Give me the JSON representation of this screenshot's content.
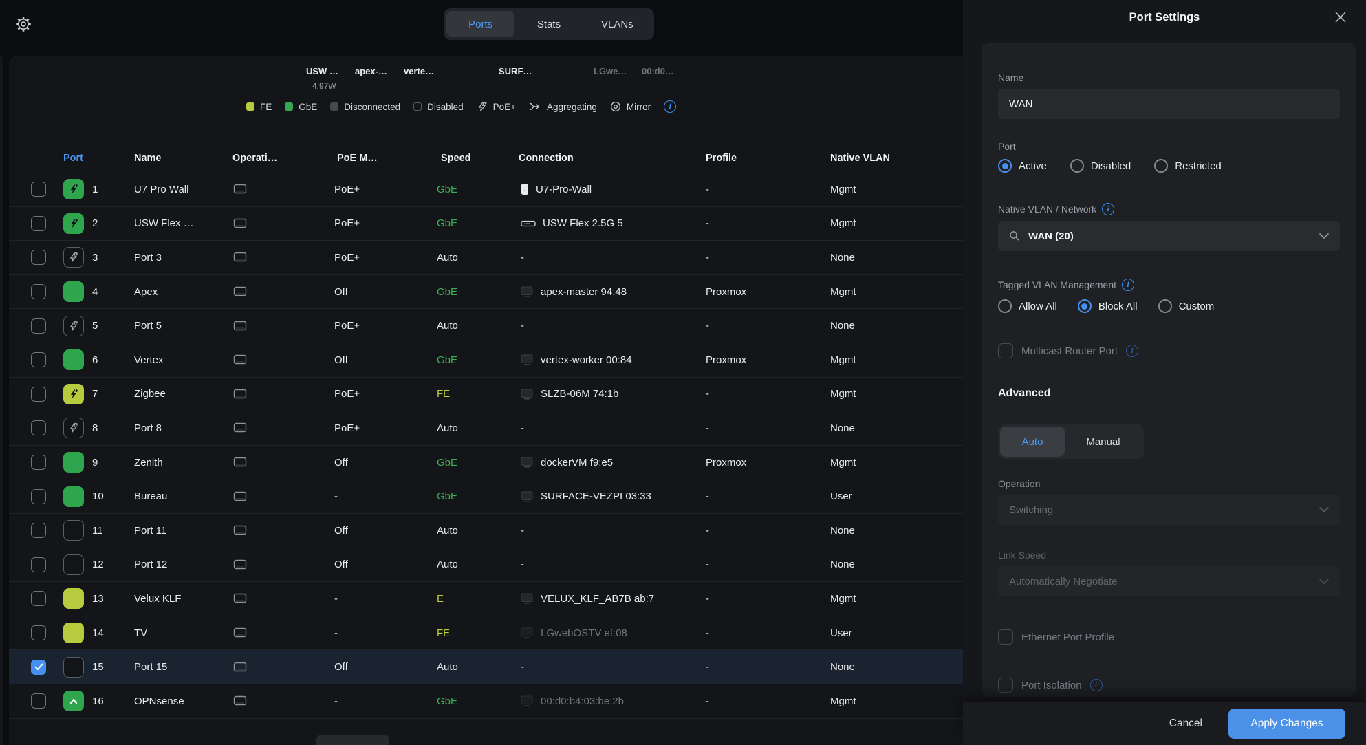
{
  "header": {
    "tabs": [
      {
        "label": "Ports",
        "active": true
      },
      {
        "label": "Stats",
        "active": false
      },
      {
        "label": "VLANs",
        "active": false
      }
    ]
  },
  "ports_overview": {
    "device_labels": [
      {
        "text": "USW …",
        "dim": false
      },
      {
        "text": "apex-…",
        "dim": false
      },
      {
        "text": "verte…",
        "dim": false
      },
      {
        "text": "SURF…",
        "dim": false
      },
      {
        "text": "LGwe…",
        "dim": true
      },
      {
        "text": "00:d0…",
        "dim": true
      }
    ],
    "power": "4.97W"
  },
  "legend": {
    "items": [
      {
        "icon": "fe-swatch",
        "label": "FE"
      },
      {
        "icon": "gbe-swatch",
        "label": "GbE"
      },
      {
        "icon": "disconnected-swatch",
        "label": "Disconnected"
      },
      {
        "icon": "disabled-swatch",
        "label": "Disabled"
      },
      {
        "icon": "poe-bolt-icon",
        "label": "PoE+"
      },
      {
        "icon": "aggregating-icon",
        "label": "Aggregating"
      },
      {
        "icon": "mirror-icon",
        "label": "Mirror"
      }
    ]
  },
  "table": {
    "columns": [
      "Port",
      "Name",
      "Operati…",
      "PoE M…",
      "Speed",
      "Connection",
      "Profile",
      "Native VLAN"
    ],
    "rows": [
      {
        "num": "1",
        "icon": "poe-active",
        "name": "U7 Pro Wall",
        "poe": "PoE+",
        "speed": "GbE",
        "speed_class": "gbe",
        "conn_icon": "ap",
        "conn": "U7-Pro-Wall",
        "conn_dim": false,
        "profile": "-",
        "vlan": "Mgmt",
        "selected": false
      },
      {
        "num": "2",
        "icon": "poe-active",
        "name": "USW Flex …",
        "poe": "PoE+",
        "speed": "GbE",
        "speed_class": "gbe",
        "conn_icon": "switch",
        "conn": "USW Flex 2.5G 5",
        "conn_dim": false,
        "profile": "-",
        "vlan": "Mgmt",
        "selected": false
      },
      {
        "num": "3",
        "icon": "poe-off",
        "name": "Port 3",
        "poe": "PoE+",
        "speed": "Auto",
        "speed_class": "plain",
        "conn_icon": null,
        "conn": "-",
        "conn_dim": false,
        "profile": "-",
        "vlan": "None",
        "selected": false
      },
      {
        "num": "4",
        "icon": "green",
        "name": "Apex",
        "poe": "Off",
        "speed": "GbE",
        "speed_class": "gbe",
        "conn_icon": "client",
        "conn": "apex-master 94:48",
        "conn_dim": false,
        "profile": "Proxmox",
        "vlan": "Mgmt",
        "selected": false
      },
      {
        "num": "5",
        "icon": "poe-off",
        "name": "Port 5",
        "poe": "PoE+",
        "speed": "Auto",
        "speed_class": "plain",
        "conn_icon": null,
        "conn": "-",
        "conn_dim": false,
        "profile": "-",
        "vlan": "None",
        "selected": false
      },
      {
        "num": "6",
        "icon": "green",
        "name": "Vertex",
        "poe": "Off",
        "speed": "GbE",
        "speed_class": "gbe",
        "conn_icon": "client",
        "conn": "vertex-worker 00:84",
        "conn_dim": false,
        "profile": "Proxmox",
        "vlan": "Mgmt",
        "selected": false
      },
      {
        "num": "7",
        "icon": "poe-fe",
        "name": "Zigbee",
        "poe": "PoE+",
        "speed": "FE",
        "speed_class": "fe",
        "conn_icon": "client",
        "conn": "SLZB-06M 74:1b",
        "conn_dim": false,
        "profile": "-",
        "vlan": "Mgmt",
        "selected": false
      },
      {
        "num": "8",
        "icon": "poe-off",
        "name": "Port 8",
        "poe": "PoE+",
        "speed": "Auto",
        "speed_class": "plain",
        "conn_icon": null,
        "conn": "-",
        "conn_dim": false,
        "profile": "-",
        "vlan": "None",
        "selected": false
      },
      {
        "num": "9",
        "icon": "green",
        "name": "Zenith",
        "poe": "Off",
        "speed": "GbE",
        "speed_class": "gbe",
        "conn_icon": "client",
        "conn": "dockerVM f9:e5",
        "conn_dim": false,
        "profile": "Proxmox",
        "vlan": "Mgmt",
        "selected": false
      },
      {
        "num": "10",
        "icon": "green",
        "name": "Bureau",
        "poe": "-",
        "speed": "GbE",
        "speed_class": "gbe",
        "conn_icon": "client",
        "conn": "SURFACE-VEZPI 03:33",
        "conn_dim": false,
        "profile": "-",
        "vlan": "User",
        "selected": false
      },
      {
        "num": "11",
        "icon": "empty",
        "name": "Port 11",
        "poe": "Off",
        "speed": "Auto",
        "speed_class": "plain",
        "conn_icon": null,
        "conn": "-",
        "conn_dim": false,
        "profile": "-",
        "vlan": "None",
        "selected": false
      },
      {
        "num": "12",
        "icon": "empty",
        "name": "Port 12",
        "poe": "Off",
        "speed": "Auto",
        "speed_class": "plain",
        "conn_icon": null,
        "conn": "-",
        "conn_dim": false,
        "profile": "-",
        "vlan": "None",
        "selected": false
      },
      {
        "num": "13",
        "icon": "fe",
        "name": "Velux KLF",
        "poe": "-",
        "speed": "E",
        "speed_class": "fe",
        "conn_icon": "client",
        "conn": "VELUX_KLF_AB7B ab:7",
        "conn_dim": false,
        "profile": "-",
        "vlan": "Mgmt",
        "selected": false
      },
      {
        "num": "14",
        "icon": "fe",
        "name": "TV",
        "poe": "-",
        "speed": "FE",
        "speed_class": "fe",
        "conn_icon": "client",
        "conn": "LGwebOSTV ef:08",
        "conn_dim": true,
        "profile": "-",
        "vlan": "User",
        "selected": false
      },
      {
        "num": "15",
        "icon": "empty",
        "name": "Port 15",
        "poe": "Off",
        "speed": "Auto",
        "speed_class": "plain",
        "conn_icon": null,
        "conn": "-",
        "conn_dim": false,
        "profile": "-",
        "vlan": "None",
        "selected": true
      },
      {
        "num": "16",
        "icon": "uplink",
        "name": "OPNsense",
        "poe": "-",
        "speed": "GbE",
        "speed_class": "gbe",
        "conn_icon": "client",
        "conn": "00:d0:b4:03:be:2b",
        "conn_dim": true,
        "profile": "-",
        "vlan": "Mgmt",
        "selected": false
      }
    ]
  },
  "panel": {
    "title": "Port Settings",
    "name_label": "Name",
    "name_value": "WAN",
    "port_label": "Port",
    "port_options": [
      {
        "label": "Active",
        "selected": true
      },
      {
        "label": "Disabled",
        "selected": false
      },
      {
        "label": "Restricted",
        "selected": false
      }
    ],
    "native_vlan_label": "Native VLAN / Network",
    "native_vlan_value": "WAN (20)",
    "tagged_label": "Tagged VLAN Management",
    "tagged_options": [
      {
        "label": "Allow All",
        "selected": false
      },
      {
        "label": "Block All",
        "selected": true
      },
      {
        "label": "Custom",
        "selected": false
      }
    ],
    "multicast_label": "Multicast Router Port",
    "advanced_label": "Advanced",
    "advanced_tabs": [
      {
        "label": "Auto",
        "selected": true
      },
      {
        "label": "Manual",
        "selected": false
      }
    ],
    "operation_label": "Operation",
    "operation_value": "Switching",
    "link_speed_label": "Link Speed",
    "link_speed_value": "Automatically Negotiate",
    "ethernet_profile_label": "Ethernet Port Profile",
    "port_isolation_label": "Port Isolation",
    "cancel_label": "Cancel",
    "apply_label": "Apply Changes"
  },
  "colors": {
    "accent_blue": "#478ff0",
    "apply_blue": "#4b91e8",
    "gbe_green": "#3fae57",
    "fe_yellow": "#b9cc3e",
    "selected_row": "#1a2330"
  }
}
